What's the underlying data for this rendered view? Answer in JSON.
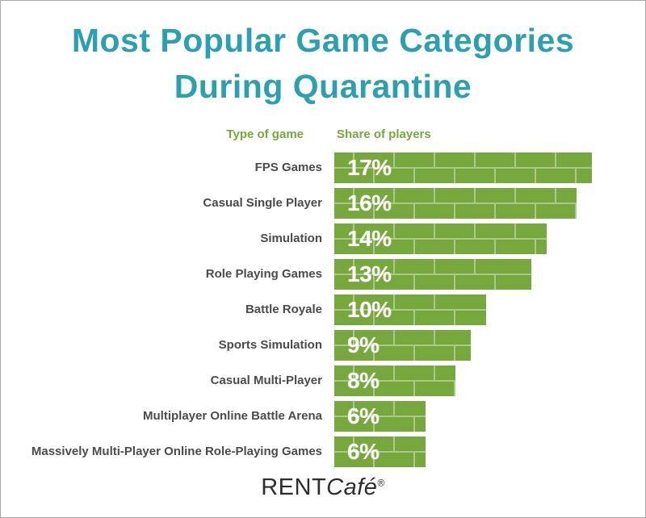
{
  "page": {
    "title_line1": "Most Popular Game Categories",
    "title_line2": "During Quarantine"
  },
  "table": {
    "col1_header": "Type of game",
    "col2_header": "Share of players"
  },
  "rows": [
    {
      "label": "FPS Games",
      "value": 17,
      "value_label": "17%"
    },
    {
      "label": "Casual Single Player",
      "value": 16,
      "value_label": "16%"
    },
    {
      "label": "Simulation",
      "value": 14,
      "value_label": "14%"
    },
    {
      "label": "Role Playing Games",
      "value": 13,
      "value_label": "13%"
    },
    {
      "label": "Battle Royale",
      "value": 10,
      "value_label": "10%"
    },
    {
      "label": "Sports Simulation",
      "value": 9,
      "value_label": "9%"
    },
    {
      "label": "Casual Multi-Player",
      "value": 8,
      "value_label": "8%"
    },
    {
      "label": "Multiplayer Online Battle Arena",
      "value": 6,
      "value_label": "6%"
    },
    {
      "label": "Massively Multi-Player Online Role-Playing Games",
      "value": 6,
      "value_label": "6%"
    }
  ],
  "footer": {
    "logo_rent": "RENT",
    "logo_cafe": "Café",
    "logo_reg": "®"
  },
  "colors": {
    "title_teal": "#2C9FB0",
    "bar_green": "#77A83D",
    "mortar_line": "#A6C878",
    "label_gray": "#4A4B4D",
    "percent_text": "#FFFFFF"
  },
  "chart_data": {
    "type": "bar",
    "orientation": "horizontal",
    "title": "Most Popular Game Categories During Quarantine",
    "categories": [
      "FPS Games",
      "Casual Single Player",
      "Simulation",
      "Role Playing Games",
      "Battle Royale",
      "Sports Simulation",
      "Casual Multi-Player",
      "Multiplayer Online Battle Arena",
      "Massively Multi-Player Online Role-Playing Games"
    ],
    "values": [
      17,
      16,
      14,
      13,
      10,
      9,
      8,
      6,
      6
    ],
    "unit": "%",
    "xlabel": "Share of players",
    "ylabel": "Type of game",
    "xlim": [
      0,
      17
    ],
    "grid": false,
    "legend": false,
    "data_labels": "inside-bar-start"
  }
}
